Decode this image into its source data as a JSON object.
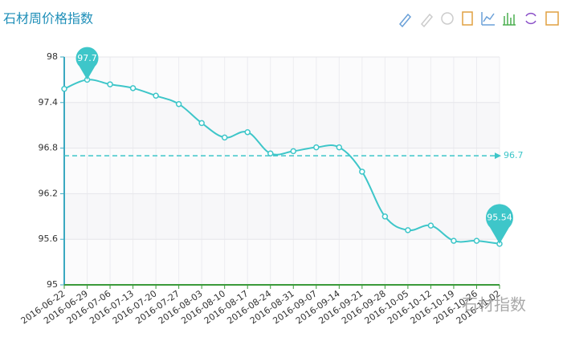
{
  "chart_data": {
    "type": "line",
    "title": "石材周价格指数",
    "categories": [
      "2016-06-22",
      "2016-06-29",
      "2016-07-06",
      "2016-07-13",
      "2016-07-20",
      "2016-07-27",
      "2016-08-03",
      "2016-08-10",
      "2016-08-17",
      "2016-08-24",
      "2016-08-31",
      "2016-09-07",
      "2016-09-14",
      "2016-09-21",
      "2016-09-28",
      "2016-10-05",
      "2016-10-12",
      "2016-10-19",
      "2016-10-26",
      "2016-11-02"
    ],
    "values": [
      97.58,
      97.7,
      97.64,
      97.59,
      97.49,
      97.38,
      97.13,
      96.94,
      97.01,
      96.73,
      96.76,
      96.81,
      96.81,
      96.49,
      95.9,
      95.72,
      95.78,
      95.58,
      95.58,
      95.54
    ],
    "color": "#3ec6c9",
    "average": 96.7,
    "ylim": [
      95,
      98
    ],
    "yticks": [
      95,
      95.6,
      96.2,
      96.8,
      97.4,
      98
    ],
    "grid": true,
    "watermark": "石材指数"
  }
}
